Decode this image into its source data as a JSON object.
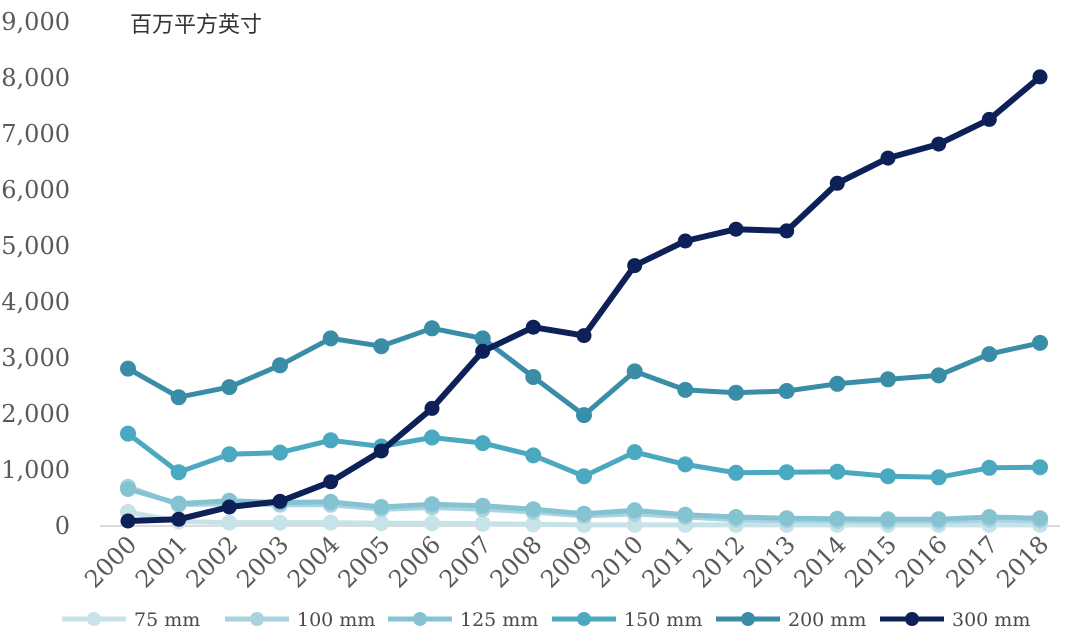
{
  "chart_data": {
    "type": "line",
    "unit_label": "百万平方英寸",
    "x": [
      "2000",
      "2001",
      "2002",
      "2003",
      "2004",
      "2005",
      "2006",
      "2007",
      "2008",
      "2009",
      "2010",
      "2011",
      "2012",
      "2013",
      "2014",
      "2015",
      "2016",
      "2017",
      "2018"
    ],
    "ylim": [
      0,
      9000
    ],
    "yticks": [
      "0",
      "1,000",
      "2,000",
      "3,000",
      "4,000",
      "5,000",
      "6,000",
      "7,000",
      "8,000",
      "9,000"
    ],
    "grid": false,
    "legend_position": "bottom",
    "series": [
      {
        "name": "75 mm",
        "color": "#c8e2ea",
        "values": [
          250,
          80,
          60,
          60,
          60,
          50,
          50,
          40,
          30,
          20,
          20,
          20,
          20,
          20,
          20,
          20,
          20,
          20,
          20
        ]
      },
      {
        "name": "100 mm",
        "color": "#a9d3df",
        "values": [
          700,
          380,
          400,
          380,
          380,
          300,
          330,
          300,
          250,
          180,
          220,
          160,
          110,
          100,
          90,
          80,
          80,
          110,
          100
        ]
      },
      {
        "name": "125 mm",
        "color": "#85c3d3",
        "values": [
          660,
          400,
          450,
          420,
          430,
          340,
          390,
          360,
          300,
          220,
          280,
          200,
          160,
          140,
          130,
          120,
          120,
          160,
          140
        ]
      },
      {
        "name": "150 mm",
        "color": "#4aa9c0",
        "values": [
          1650,
          960,
          1280,
          1310,
          1530,
          1420,
          1580,
          1480,
          1260,
          890,
          1320,
          1100,
          950,
          960,
          970,
          890,
          870,
          1040,
          1050
        ]
      },
      {
        "name": "200 mm",
        "color": "#3a8da6",
        "values": [
          2810,
          2300,
          2480,
          2870,
          3350,
          3210,
          3530,
          3350,
          2660,
          1980,
          2760,
          2430,
          2380,
          2410,
          2540,
          2620,
          2690,
          3070,
          3270
        ]
      },
      {
        "name": "300 mm",
        "color": "#0d2057",
        "values": [
          90,
          120,
          340,
          440,
          790,
          1340,
          2100,
          3120,
          3550,
          3400,
          4650,
          5090,
          5300,
          5270,
          6120,
          6570,
          6820,
          7260,
          8020
        ]
      }
    ]
  }
}
